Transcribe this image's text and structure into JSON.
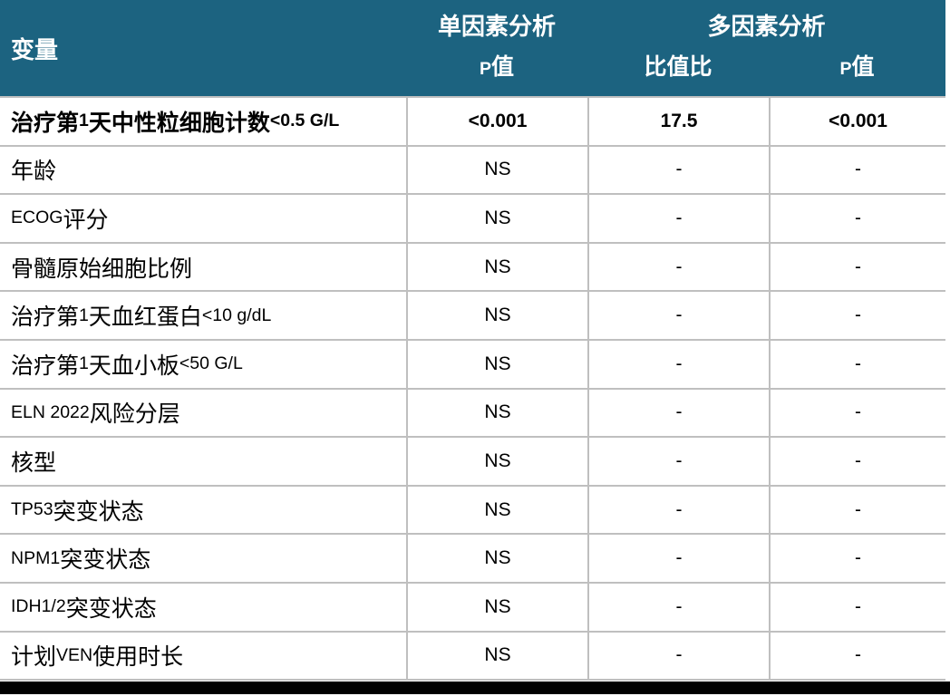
{
  "table": {
    "colors": {
      "header_bg": "#1c6380",
      "grid_line": "#bfbfbf",
      "bar_color": "#000000"
    },
    "header": {
      "variable_label": "变量",
      "univariate_group_label": "单因素分析",
      "multivariate_group_label": "多因素分析",
      "univariate_p_label": "P值",
      "odds_ratio_label": "比值比",
      "multivariate_p_label": "P值"
    },
    "rows": [
      {
        "label": "治疗第1天中性粒细胞计数 <0.5 G/L",
        "uni_p": "<0.001",
        "odds_ratio": "17.5",
        "multi_p": "<0.001",
        "bold": true
      },
      {
        "label": "年龄",
        "uni_p": "NS",
        "odds_ratio": "-",
        "multi_p": "-",
        "bold": false
      },
      {
        "label": "ECOG评分",
        "uni_p": "NS",
        "odds_ratio": "-",
        "multi_p": "-",
        "bold": false
      },
      {
        "label": "骨髓原始细胞比例",
        "uni_p": "NS",
        "odds_ratio": "-",
        "multi_p": "-",
        "bold": false
      },
      {
        "label": "治疗第1天血红蛋白 <10 g/dL",
        "uni_p": "NS",
        "odds_ratio": "-",
        "multi_p": "-",
        "bold": false
      },
      {
        "label": "治疗第1天血小板 <50 G/L",
        "uni_p": "NS",
        "odds_ratio": "-",
        "multi_p": "-",
        "bold": false
      },
      {
        "label": "ELN 2022 风险分层",
        "uni_p": "NS",
        "odds_ratio": "-",
        "multi_p": "-",
        "bold": false
      },
      {
        "label": "核型",
        "uni_p": "NS",
        "odds_ratio": "-",
        "multi_p": "-",
        "bold": false
      },
      {
        "label": "TP53 突变状态",
        "uni_p": "NS",
        "odds_ratio": "-",
        "multi_p": "-",
        "bold": false
      },
      {
        "label": "NPM1 突变状态",
        "uni_p": "NS",
        "odds_ratio": "-",
        "multi_p": "-",
        "bold": false
      },
      {
        "label": "IDH1/2 突变状态",
        "uni_p": "NS",
        "odds_ratio": "-",
        "multi_p": "-",
        "bold": false
      },
      {
        "label": "计划VEN使用时长",
        "uni_p": "NS",
        "odds_ratio": "-",
        "multi_p": "-",
        "bold": false
      }
    ]
  }
}
